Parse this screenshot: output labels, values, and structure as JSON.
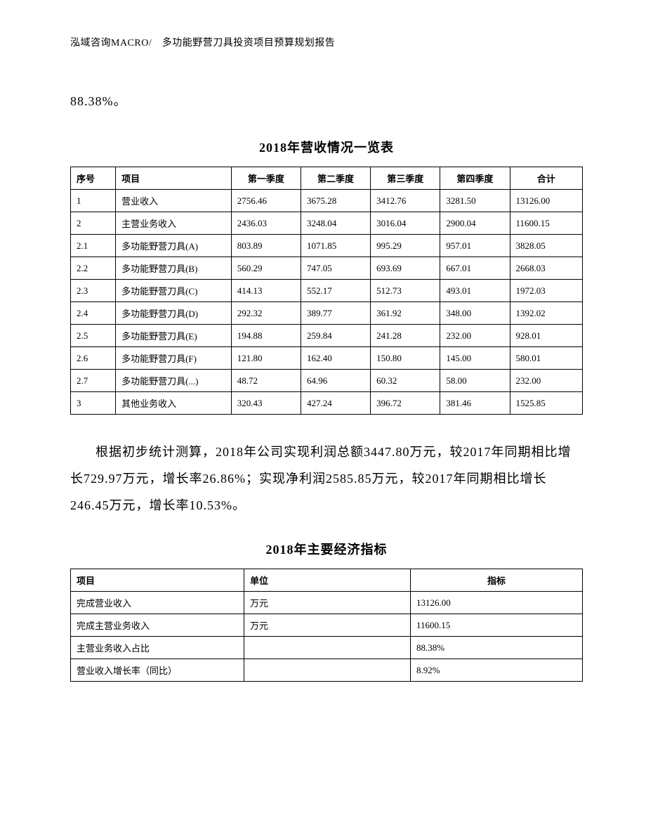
{
  "header": {
    "text": "泓域咨询MACRO/　多功能野营刀具投资项目预算规划报告"
  },
  "intro": {
    "text": "88.38%。"
  },
  "table1": {
    "title": "2018年营收情况一览表",
    "columns": [
      "序号",
      "项目",
      "第一季度",
      "第二季度",
      "第三季度",
      "第四季度",
      "合计"
    ],
    "rows": [
      [
        "1",
        "营业收入",
        "2756.46",
        "3675.28",
        "3412.76",
        "3281.50",
        "13126.00"
      ],
      [
        "2",
        "主营业务收入",
        "2436.03",
        "3248.04",
        "3016.04",
        "2900.04",
        "11600.15"
      ],
      [
        "2.1",
        "多功能野营刀具(A)",
        "803.89",
        "1071.85",
        "995.29",
        "957.01",
        "3828.05"
      ],
      [
        "2.2",
        "多功能野营刀具(B)",
        "560.29",
        "747.05",
        "693.69",
        "667.01",
        "2668.03"
      ],
      [
        "2.3",
        "多功能野营刀具(C)",
        "414.13",
        "552.17",
        "512.73",
        "493.01",
        "1972.03"
      ],
      [
        "2.4",
        "多功能野营刀具(D)",
        "292.32",
        "389.77",
        "361.92",
        "348.00",
        "1392.02"
      ],
      [
        "2.5",
        "多功能野营刀具(E)",
        "194.88",
        "259.84",
        "241.28",
        "232.00",
        "928.01"
      ],
      [
        "2.6",
        "多功能野营刀具(F)",
        "121.80",
        "162.40",
        "150.80",
        "145.00",
        "580.01"
      ],
      [
        "2.7",
        "多功能野营刀具(...)",
        "48.72",
        "64.96",
        "60.32",
        "58.00",
        "232.00"
      ],
      [
        "3",
        "其他业务收入",
        "320.43",
        "427.24",
        "396.72",
        "381.46",
        "1525.85"
      ]
    ]
  },
  "paragraph1": {
    "text": "根据初步统计测算，2018年公司实现利润总额3447.80万元，较2017年同期相比增长729.97万元，增长率26.86%；实现净利润2585.85万元，较2017年同期相比增长246.45万元，增长率10.53%。"
  },
  "table2": {
    "title": "2018年主要经济指标",
    "columns": [
      "项目",
      "单位",
      "指标"
    ],
    "rows": [
      [
        "完成营业收入",
        "万元",
        "13126.00"
      ],
      [
        "完成主营业务收入",
        "万元",
        "11600.15"
      ],
      [
        "主营业务收入占比",
        "",
        "88.38%"
      ],
      [
        "营业收入增长率（同比）",
        "",
        "8.92%"
      ]
    ]
  }
}
